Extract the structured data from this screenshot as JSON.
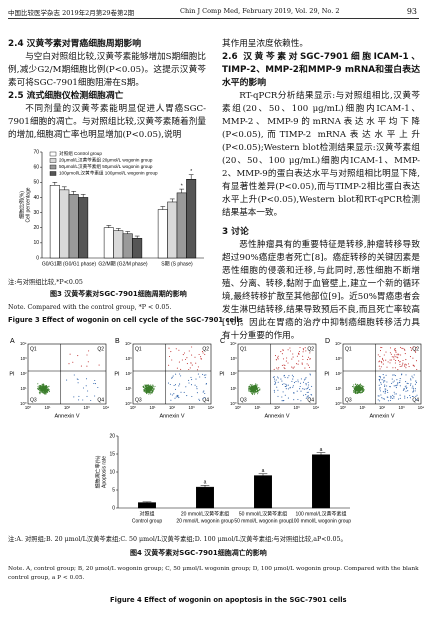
{
  "header": {
    "journal_cn": "中国比较医学杂志 2019年2月第29卷第2期",
    "journal_en": "Chin J Comp Med, February 2019, Vol. 29, No. 2",
    "page": "93"
  },
  "left_column": [
    {
      "heading": "2.4 汉黄芩素对胃癌细胞周期影响",
      "text": "与空白对照组比较,汉黄芩素能够增加S期细胞比例,减少G2/M期细胞比例(P<0.05)。这提示汉黄芩素可将SGC-7901细胞阻滞在S期。"
    },
    {
      "heading": "2.5 流式细胞仪检测细胞凋亡",
      "text": "不同剂量的汉黄芩素能明显促进人胃癌SGC-7901细胞的凋亡。与对照组比较,汉黄芩素随着剂量的增加,细胞凋亡率也明显增加(P<0.05),说明"
    }
  ],
  "right_column": [
    {
      "text": "其作用呈浓度依赖性。"
    },
    {
      "heading": "2.6 汉黄芩素对SGC-7901细胞ICAM-1、TIMP-2、MMP-2和MMP-9 mRNA和蛋白表达水平的影响",
      "text": "RT-qPCR分析结果显示:与对照组相比,汉黄芩素组(20、50、100 μg/mL)细胞内ICAM-1、MMP-2、MMP-9的mRNA表达水平均下降(P<0.05),而TIMP-2 mRNA表达水平上升(P<0.05);Western blot检测结果显示:汉黄芩素组(20、50、100 μg/mL)细胞内ICAM-1、MMP-2、MMP-9的蛋白表达水平与对照组相比明显下降,有显著性差异(P<0.05),而与TIMP-2相比蛋白表达水平上升(P<0.05),Western blot和RT-qPCR检测结果基本一致。"
    },
    {
      "heading": "3 讨论",
      "text": "恶性肿瘤具有的重要特征是转移,肿瘤转移导致超过90%癌症患者死亡[8]。癌症转移的关键因素是恶性细胞的侵袭和迁移,与此同时,恶性细胞不断增殖、分离、转移,黏附于血管壁上,建立一个新的循环境,最终转移扩散至其他部位[9]。近50%胃癌患者会发生淋巴结转移,结果导致预后不良,而且死亡率较高[10]。因此在胃癌的治疗中抑制癌细胞转移活力具有十分重要的作用。"
    }
  ],
  "figure3": {
    "note_cn": "注:与对照组比较,*P<0.05",
    "caption_cn": "图3 汉黄芩素对SGC-7901细胞周期的影响",
    "note_en": "Note. Compared with the control group, *P < 0.05.",
    "caption_en": "Figure 3 Effect of wogonin on cell cycle of the SGC-7901 cells"
  },
  "flow_panels": {
    "panels": [
      "A",
      "B",
      "C",
      "D"
    ],
    "quadrants": [
      "Q1",
      "Q2",
      "Q3",
      "Q4"
    ],
    "x_label": "Annexin V",
    "y_label": "PI",
    "ticks": [
      "10⁰",
      "10¹",
      "10²",
      "10³",
      "10⁴"
    ]
  },
  "figure4": {
    "note_cn": "注:A. 对照组;B. 20 μmol/L汉黄芩素组;C. 50 μmol/L汉黄芩素组;D. 100 μmol/L汉黄芩素组;与对照组比较,aP<0.05。",
    "caption_cn": "图4 汉黄芩素对SGC-7901细胞凋亡的影响",
    "note_en": "Note. A, control group; B, 20 μmol/L wogonin group; C, 50 μmol/L wogonin group; D, 100 μmol/L wogonin group. Compared with the blank control group, a P < 0.05.",
    "caption_en": "Figure 4 Effect of wogonin on apoptosis in the SGC-7901 cells"
  },
  "chart_data": [
    {
      "type": "bar",
      "ylabel": "细胞比例(%)",
      "ylabel_en": "Cell percentage",
      "categories": [
        "G0/G1期 (G0/G1 phase)",
        "G2/M期 (G2/M phase)",
        "S期 (S phase)"
      ],
      "series": [
        {
          "name": "对照组 Control group",
          "color": "#ffffff",
          "values": [
            48,
            20,
            32
          ],
          "errors": [
            2,
            1.5,
            2
          ],
          "markers": [
            null,
            null,
            null
          ]
        },
        {
          "name": "20μmol/L汉黄芩素组 20μmol/L wogonin group",
          "color": "#d9d9d9",
          "values": [
            45,
            18,
            37
          ],
          "errors": [
            2,
            1.5,
            2
          ],
          "markers": [
            null,
            null,
            null
          ]
        },
        {
          "name": "50μmol/L汉黄芩素组 50μmol/L wogonin group",
          "color": "#9a9a9a",
          "values": [
            42,
            16,
            43
          ],
          "errors": [
            2,
            1.5,
            2.5
          ],
          "markers": [
            null,
            null,
            "*"
          ]
        },
        {
          "name": "100μmol/L汉黄芩素组 100μmol/L wogonin group",
          "color": "#555555",
          "values": [
            40,
            13,
            52
          ],
          "errors": [
            2,
            1.5,
            3
          ],
          "markers": [
            null,
            null,
            "*"
          ]
        }
      ],
      "ylim": [
        0,
        70
      ],
      "yticks": [
        0,
        10,
        20,
        30,
        40,
        50,
        60,
        70
      ],
      "grid": false
    },
    {
      "type": "bar",
      "ylabel": "细胞凋亡率(%)",
      "ylabel_en": "Apoptosis rate",
      "categories": [
        "对照组",
        "20 mmol/L汉黄芩素组",
        "50 mmol/L汉黄芩素组",
        "100 mmol/L汉黄芩素组"
      ],
      "categories_en": [
        "Control group",
        "20 mmol/L wogonin group",
        "50 mmol/L wogonin group",
        "100 mmol/L wogonin group"
      ],
      "values": [
        1.5,
        5.8,
        9.0,
        14.8
      ],
      "errors": [
        0.2,
        0.5,
        0.5,
        0.6
      ],
      "markers": [
        null,
        "a",
        "a",
        "a"
      ],
      "color": "#000000",
      "ylim": [
        0,
        20
      ],
      "yticks": [
        0,
        5,
        10,
        15,
        20
      ],
      "grid": false
    }
  ]
}
